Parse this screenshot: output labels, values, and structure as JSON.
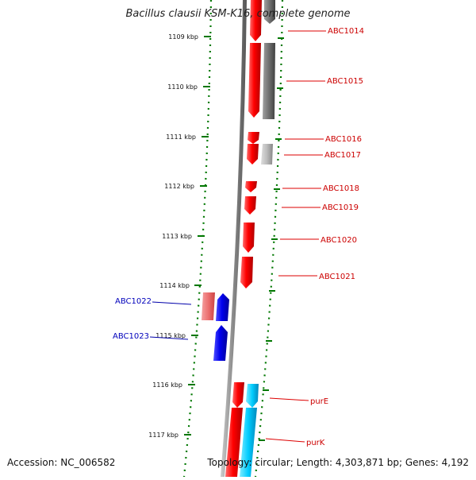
{
  "title": "Bacillus clausii KSM-K16, complete genome",
  "accession": "Accession: NC_006582",
  "topology": "Topology: circular; Length: 4,303,871 bp; Genes: 4,192",
  "colors": {
    "forward": "#ff0000",
    "reverse": "#0000ff",
    "pseudo_forward": "#f08080",
    "other": "#707070",
    "other_light": "#b0b0b0",
    "cyan": "#00ccff",
    "tick": "#007700",
    "backbone": "#888888"
  },
  "scale_ticks": [
    {
      "label": "1109 kbp"
    },
    {
      "label": "1110 kbp"
    },
    {
      "label": "1111 kbp"
    },
    {
      "label": "1112 kbp"
    },
    {
      "label": "1113 kbp"
    },
    {
      "label": "1114 kbp"
    },
    {
      "label": "1115 kbp"
    },
    {
      "label": "1116 kbp"
    },
    {
      "label": "1117 kbp"
    }
  ],
  "gene_labels": [
    {
      "label": "ABC1014",
      "strand": "right"
    },
    {
      "label": "ABC1015",
      "strand": "right"
    },
    {
      "label": "ABC1016",
      "strand": "right"
    },
    {
      "label": "ABC1017",
      "strand": "right"
    },
    {
      "label": "ABC1018",
      "strand": "right"
    },
    {
      "label": "ABC1019",
      "strand": "right"
    },
    {
      "label": "ABC1020",
      "strand": "right"
    },
    {
      "label": "ABC1021",
      "strand": "right"
    },
    {
      "label": "ABC1022",
      "strand": "left"
    },
    {
      "label": "ABC1023",
      "strand": "left"
    },
    {
      "label": "purE",
      "strand": "right"
    },
    {
      "label": "purK",
      "strand": "right"
    }
  ]
}
